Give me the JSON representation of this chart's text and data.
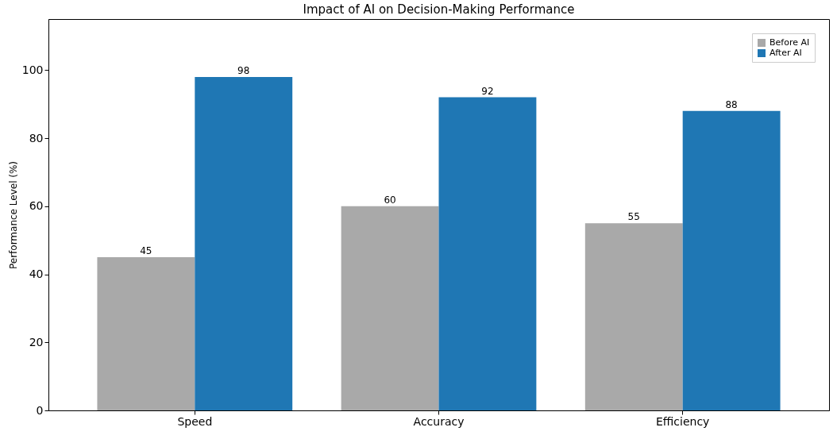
{
  "chart_data": {
    "type": "bar",
    "title": "Impact of AI on Decision-Making Performance",
    "ylabel": "Performance Level (%)",
    "categories": [
      "Speed",
      "Accuracy",
      "Efficiency"
    ],
    "series": [
      {
        "name": "Before AI",
        "color": "#a9a9a9",
        "values": [
          45,
          60,
          55
        ]
      },
      {
        "name": "After AI",
        "color": "#1f77b4",
        "values": [
          98,
          92,
          88
        ]
      }
    ],
    "ylim": [
      0,
      115
    ],
    "yticks": [
      0,
      20,
      40,
      60,
      80,
      100
    ],
    "data_labels": true,
    "legend": "top right",
    "grid": false
  }
}
